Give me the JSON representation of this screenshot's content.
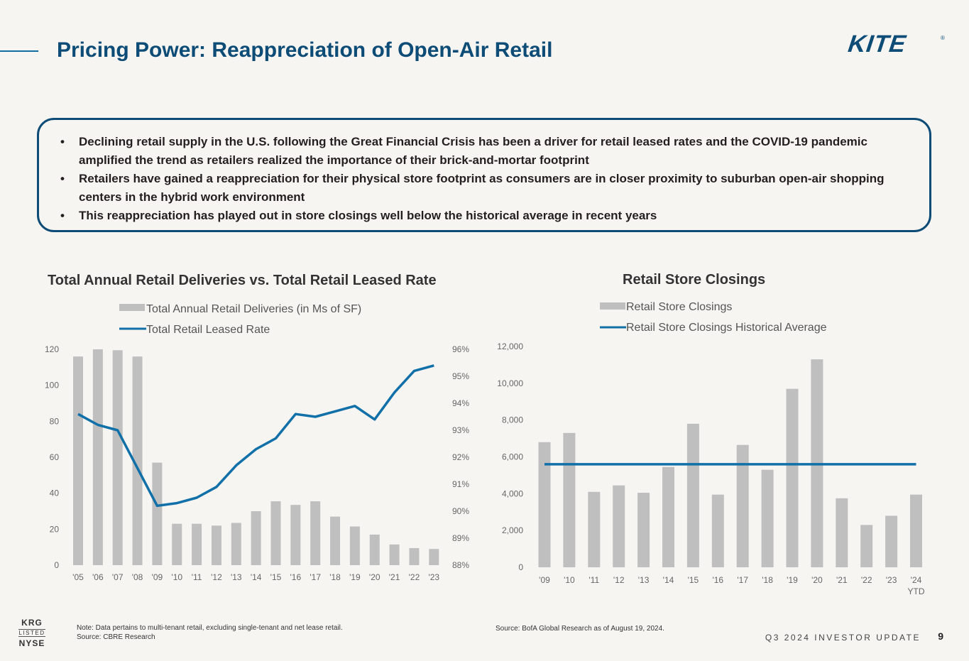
{
  "header": {
    "title": "Pricing Power: Reappreciation of Open-Air Retail",
    "logo_text": "KITE",
    "logo_mark": "®"
  },
  "callout": {
    "bullets": [
      "Declining retail supply in the U.S. following the Great Financial Crisis has been a driver for retail leased rates and the COVID-19 pandemic amplified the trend as retailers realized the importance of their brick-and-mortar footprint",
      "Retailers have gained a reappreciation for their physical store footprint as consumers are in closer proximity to suburban open-air shopping centers in the hybrid work environment",
      "This reappreciation has played out in store closings well below the historical average in recent years"
    ]
  },
  "chart_data": [
    {
      "type": "bar+line",
      "title": "Total Annual Retail Deliveries vs. Total Retail Leased Rate",
      "categories": [
        "'05",
        "'06",
        "'07",
        "'08",
        "'09",
        "'10",
        "'11",
        "'12",
        "'13",
        "'14",
        "'15",
        "'16",
        "'17",
        "'18",
        "'19",
        "'20",
        "'21",
        "'22",
        "'23"
      ],
      "series": [
        {
          "name": "Total Annual Retail Deliveries (in Ms of SF)",
          "kind": "bar",
          "axis": "left",
          "color": "#bfbfbf",
          "values": [
            116,
            120,
            119.5,
            116,
            57,
            23,
            23,
            22,
            23.5,
            30,
            35.5,
            33.5,
            35.5,
            27,
            21.5,
            17,
            11.5,
            9.5,
            9
          ]
        },
        {
          "name": "Total Retail Leased Rate",
          "kind": "line",
          "axis": "right",
          "color": "#1170a8",
          "values": [
            93.6,
            93.2,
            93.0,
            91.6,
            90.2,
            90.3,
            90.5,
            90.9,
            91.7,
            92.3,
            92.7,
            93.6,
            93.5,
            93.7,
            93.9,
            93.4,
            94.4,
            95.2,
            95.4
          ]
        }
      ],
      "ylim_left": [
        0,
        120
      ],
      "yticks_left": [
        "0",
        "20",
        "40",
        "60",
        "80",
        "100",
        "120"
      ],
      "ylim_right": [
        88,
        96
      ],
      "yticks_right": [
        "88%",
        "89%",
        "90%",
        "91%",
        "92%",
        "93%",
        "94%",
        "95%",
        "96%"
      ]
    },
    {
      "type": "bar+line",
      "title": "Retail Store Closings",
      "categories": [
        "'09",
        "'10",
        "'11",
        "'12",
        "'13",
        "'14",
        "'15",
        "'16",
        "'17",
        "'18",
        "'19",
        "'20",
        "'21",
        "'22",
        "'23",
        "'24"
      ],
      "category_sublabels": {
        "15": "YTD"
      },
      "series": [
        {
          "name": "Retail Store Closings",
          "kind": "bar",
          "color": "#bfbfbf",
          "values": [
            6800,
            7300,
            4100,
            4450,
            4050,
            5450,
            7800,
            3950,
            6650,
            5300,
            9700,
            11300,
            3750,
            2300,
            2800,
            3950
          ]
        },
        {
          "name": "Retail Store Closings Historical Average",
          "kind": "line",
          "color": "#1170a8",
          "values": [
            5600,
            5600,
            5600,
            5600,
            5600,
            5600,
            5600,
            5600,
            5600,
            5600,
            5600,
            5600,
            5600,
            5600,
            5600,
            5600
          ]
        }
      ],
      "ylim": [
        0,
        12000
      ],
      "yticks": [
        "0",
        "2,000",
        "4,000",
        "6,000",
        "8,000",
        "10,000",
        "12,000"
      ]
    }
  ],
  "notes": {
    "left_note_1": "Note: Data pertains to multi-tenant retail, excluding single-tenant and net lease retail.",
    "left_note_2": "Source: CBRE Research",
    "right_note": "Source: BofA Global Research as of August 19, 2024."
  },
  "footer": {
    "krg_ticker": "KRG",
    "krg_listed": "LISTED",
    "krg_exchange": "NYSE",
    "label": "Q3 2024 INVESTOR UPDATE",
    "page": "9"
  },
  "colors": {
    "accent": "#0d4c76",
    "line": "#1170a8",
    "bar": "#bfbfbf"
  }
}
